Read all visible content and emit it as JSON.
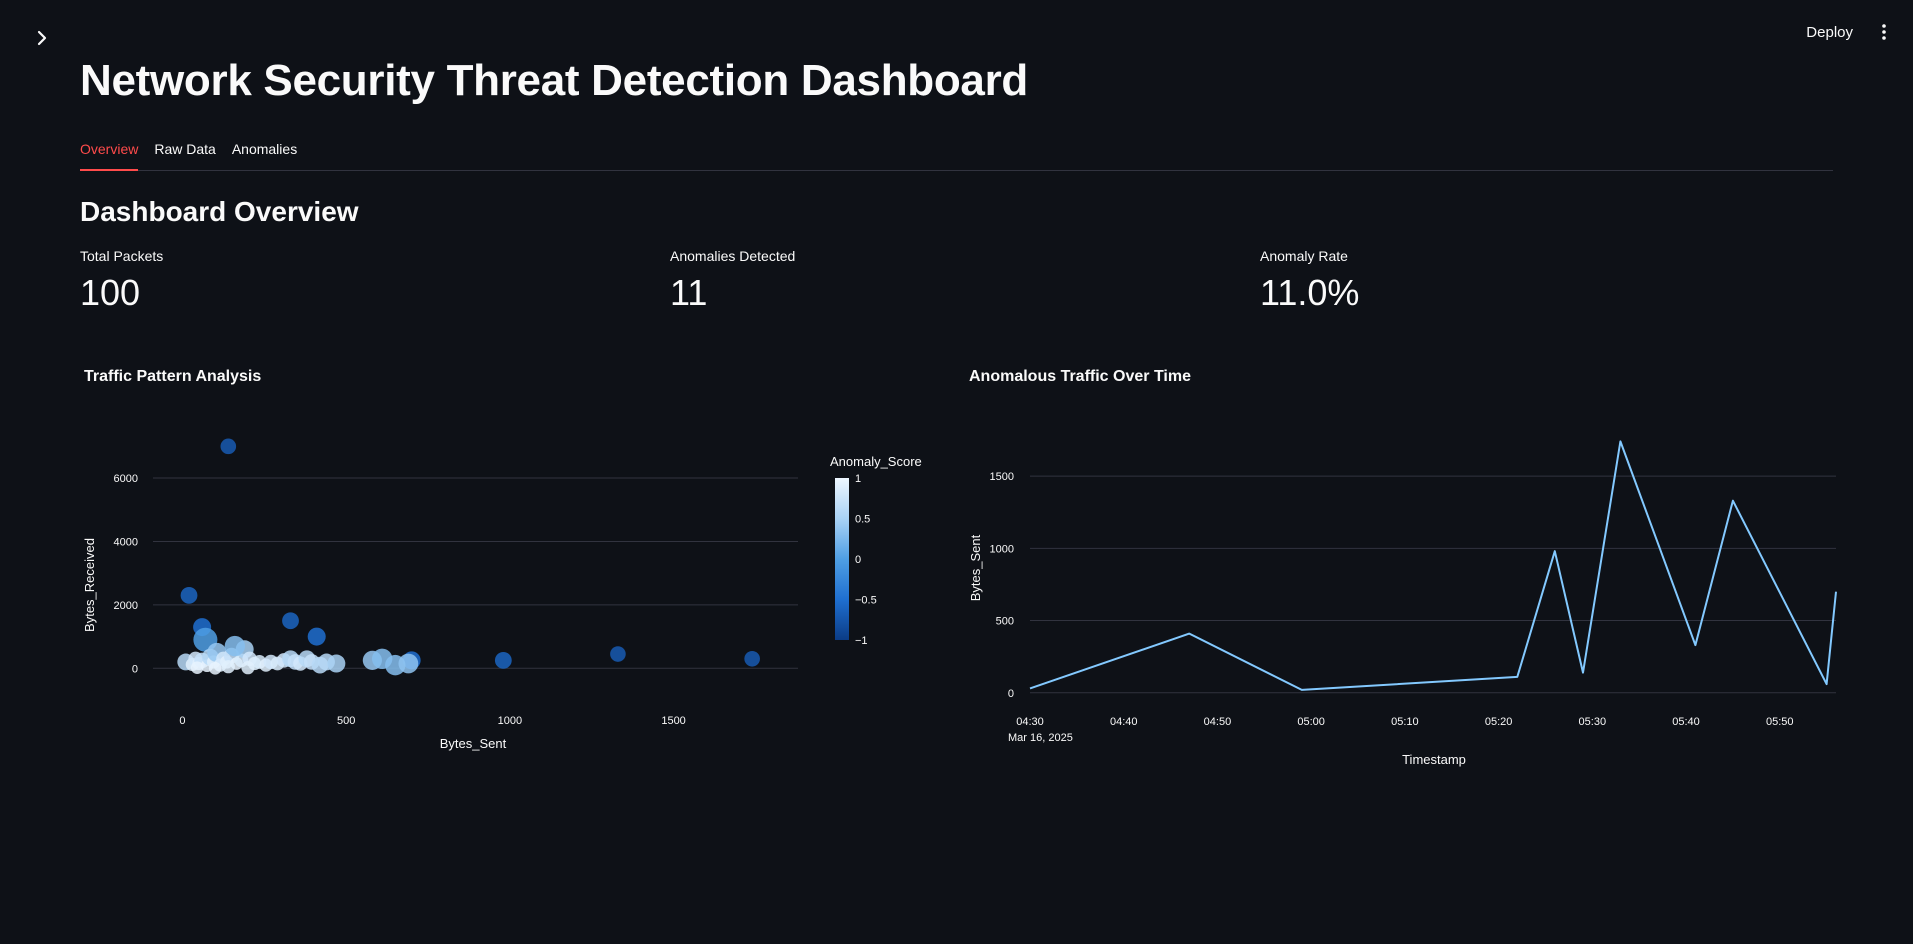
{
  "app": {
    "deploy_label": "Deploy",
    "sidebar_toggle_icon": "chevron-right-icon",
    "menu_icon": "kebab-menu-icon"
  },
  "header": {
    "title": "Network Security Threat Detection Dashboard"
  },
  "tabs": [
    {
      "label": "Overview",
      "active": true
    },
    {
      "label": "Raw Data",
      "active": false
    },
    {
      "label": "Anomalies",
      "active": false
    }
  ],
  "overview": {
    "title": "Dashboard Overview",
    "metrics": [
      {
        "label": "Total Packets",
        "value": "100"
      },
      {
        "label": "Anomalies Detected",
        "value": "11"
      },
      {
        "label": "Anomaly Rate",
        "value": "11.0%"
      }
    ]
  },
  "colors": {
    "accent": "#ff4b4b",
    "background": "#0e1117",
    "line": "#83c9ff",
    "grid": "#31333f"
  },
  "chart_data": [
    {
      "type": "scatter",
      "title": "Traffic Pattern Analysis",
      "xlabel": "Bytes_Sent",
      "ylabel": "Bytes_Received",
      "xlim": [
        -90,
        1880
      ],
      "ylim": [
        -1000,
        7200
      ],
      "xticks": [
        0,
        500,
        1000,
        1500
      ],
      "yticks": [
        0,
        2000,
        4000,
        6000
      ],
      "grid": "horizontal",
      "colorbar": {
        "title": "Anomaly_Score",
        "range": [
          -1,
          1
        ],
        "ticks": [
          "1",
          "0.5",
          "0",
          "−0.5",
          "−1"
        ]
      },
      "points": [
        {
          "x": 140,
          "y": 7000,
          "score": -0.7
        },
        {
          "x": 20,
          "y": 2300,
          "score": -0.6
        },
        {
          "x": 60,
          "y": 1300,
          "score": -0.5
        },
        {
          "x": 330,
          "y": 1500,
          "score": -0.6
        },
        {
          "x": 410,
          "y": 1000,
          "score": -0.5
        },
        {
          "x": 980,
          "y": 250,
          "score": -0.6
        },
        {
          "x": 1330,
          "y": 450,
          "score": -0.7
        },
        {
          "x": 1740,
          "y": 300,
          "score": -0.7
        },
        {
          "x": 700,
          "y": 250,
          "score": -0.5
        },
        {
          "x": 70,
          "y": 900,
          "score": 0.0
        },
        {
          "x": 10,
          "y": 200,
          "score": 0.6
        },
        {
          "x": 30,
          "y": 120,
          "score": 0.9
        },
        {
          "x": 40,
          "y": 300,
          "score": 0.8
        },
        {
          "x": 50,
          "y": 150,
          "score": 0.9
        },
        {
          "x": 60,
          "y": 250,
          "score": 0.7
        },
        {
          "x": 75,
          "y": 80,
          "score": 0.95
        },
        {
          "x": 85,
          "y": 350,
          "score": 0.6
        },
        {
          "x": 95,
          "y": 200,
          "score": 0.9
        },
        {
          "x": 105,
          "y": 500,
          "score": 0.4
        },
        {
          "x": 115,
          "y": 100,
          "score": 0.9
        },
        {
          "x": 125,
          "y": 300,
          "score": 0.8
        },
        {
          "x": 135,
          "y": 200,
          "score": 0.9
        },
        {
          "x": 150,
          "y": 400,
          "score": 0.7
        },
        {
          "x": 165,
          "y": 150,
          "score": 0.95
        },
        {
          "x": 180,
          "y": 250,
          "score": 0.85
        },
        {
          "x": 190,
          "y": 600,
          "score": 0.5
        },
        {
          "x": 205,
          "y": 300,
          "score": 0.8
        },
        {
          "x": 220,
          "y": 150,
          "score": 0.9
        },
        {
          "x": 235,
          "y": 200,
          "score": 0.85
        },
        {
          "x": 255,
          "y": 100,
          "score": 0.9
        },
        {
          "x": 270,
          "y": 200,
          "score": 0.8
        },
        {
          "x": 290,
          "y": 150,
          "score": 0.85
        },
        {
          "x": 310,
          "y": 250,
          "score": 0.8
        },
        {
          "x": 330,
          "y": 300,
          "score": 0.6
        },
        {
          "x": 345,
          "y": 200,
          "score": 0.7
        },
        {
          "x": 360,
          "y": 150,
          "score": 0.8
        },
        {
          "x": 380,
          "y": 300,
          "score": 0.6
        },
        {
          "x": 395,
          "y": 200,
          "score": 0.7
        },
        {
          "x": 420,
          "y": 100,
          "score": 0.6
        },
        {
          "x": 440,
          "y": 200,
          "score": 0.6
        },
        {
          "x": 470,
          "y": 150,
          "score": 0.5
        },
        {
          "x": 580,
          "y": 250,
          "score": 0.4
        },
        {
          "x": 610,
          "y": 300,
          "score": 0.3
        },
        {
          "x": 650,
          "y": 100,
          "score": 0.3
        },
        {
          "x": 690,
          "y": 150,
          "score": 0.35
        },
        {
          "x": 160,
          "y": 700,
          "score": 0.3
        },
        {
          "x": 100,
          "y": 0,
          "score": 0.95
        },
        {
          "x": 45,
          "y": 20,
          "score": 0.95
        },
        {
          "x": 140,
          "y": 50,
          "score": 0.9
        },
        {
          "x": 200,
          "y": 20,
          "score": 0.9
        }
      ]
    },
    {
      "type": "line",
      "title": "Anomalous Traffic Over Time",
      "xlabel": "Timestamp",
      "ylabel": "Bytes_Sent",
      "x_range": [
        "2025-03-16T04:30",
        "2025-03-16T05:56"
      ],
      "ylim": [
        -50,
        1750
      ],
      "xticks": [
        "04:30",
        "04:40",
        "04:50",
        "05:00",
        "05:10",
        "05:20",
        "05:30",
        "05:40",
        "05:50"
      ],
      "xtick_sublabel": "Mar 16, 2025",
      "yticks": [
        0,
        500,
        1000,
        1500
      ],
      "grid": "horizontal",
      "series": [
        {
          "x": [
            "2025-03-16T04:30",
            "2025-03-16T04:47",
            "2025-03-16T04:59",
            "2025-03-16T05:22",
            "2025-03-16T05:26",
            "2025-03-16T05:29",
            "2025-03-16T05:33",
            "2025-03-16T05:41",
            "2025-03-16T05:45",
            "2025-03-16T05:55",
            "2025-03-16T05:56"
          ],
          "values": [
            30,
            410,
            20,
            110,
            980,
            140,
            1740,
            330,
            1330,
            60,
            700
          ]
        }
      ]
    }
  ]
}
